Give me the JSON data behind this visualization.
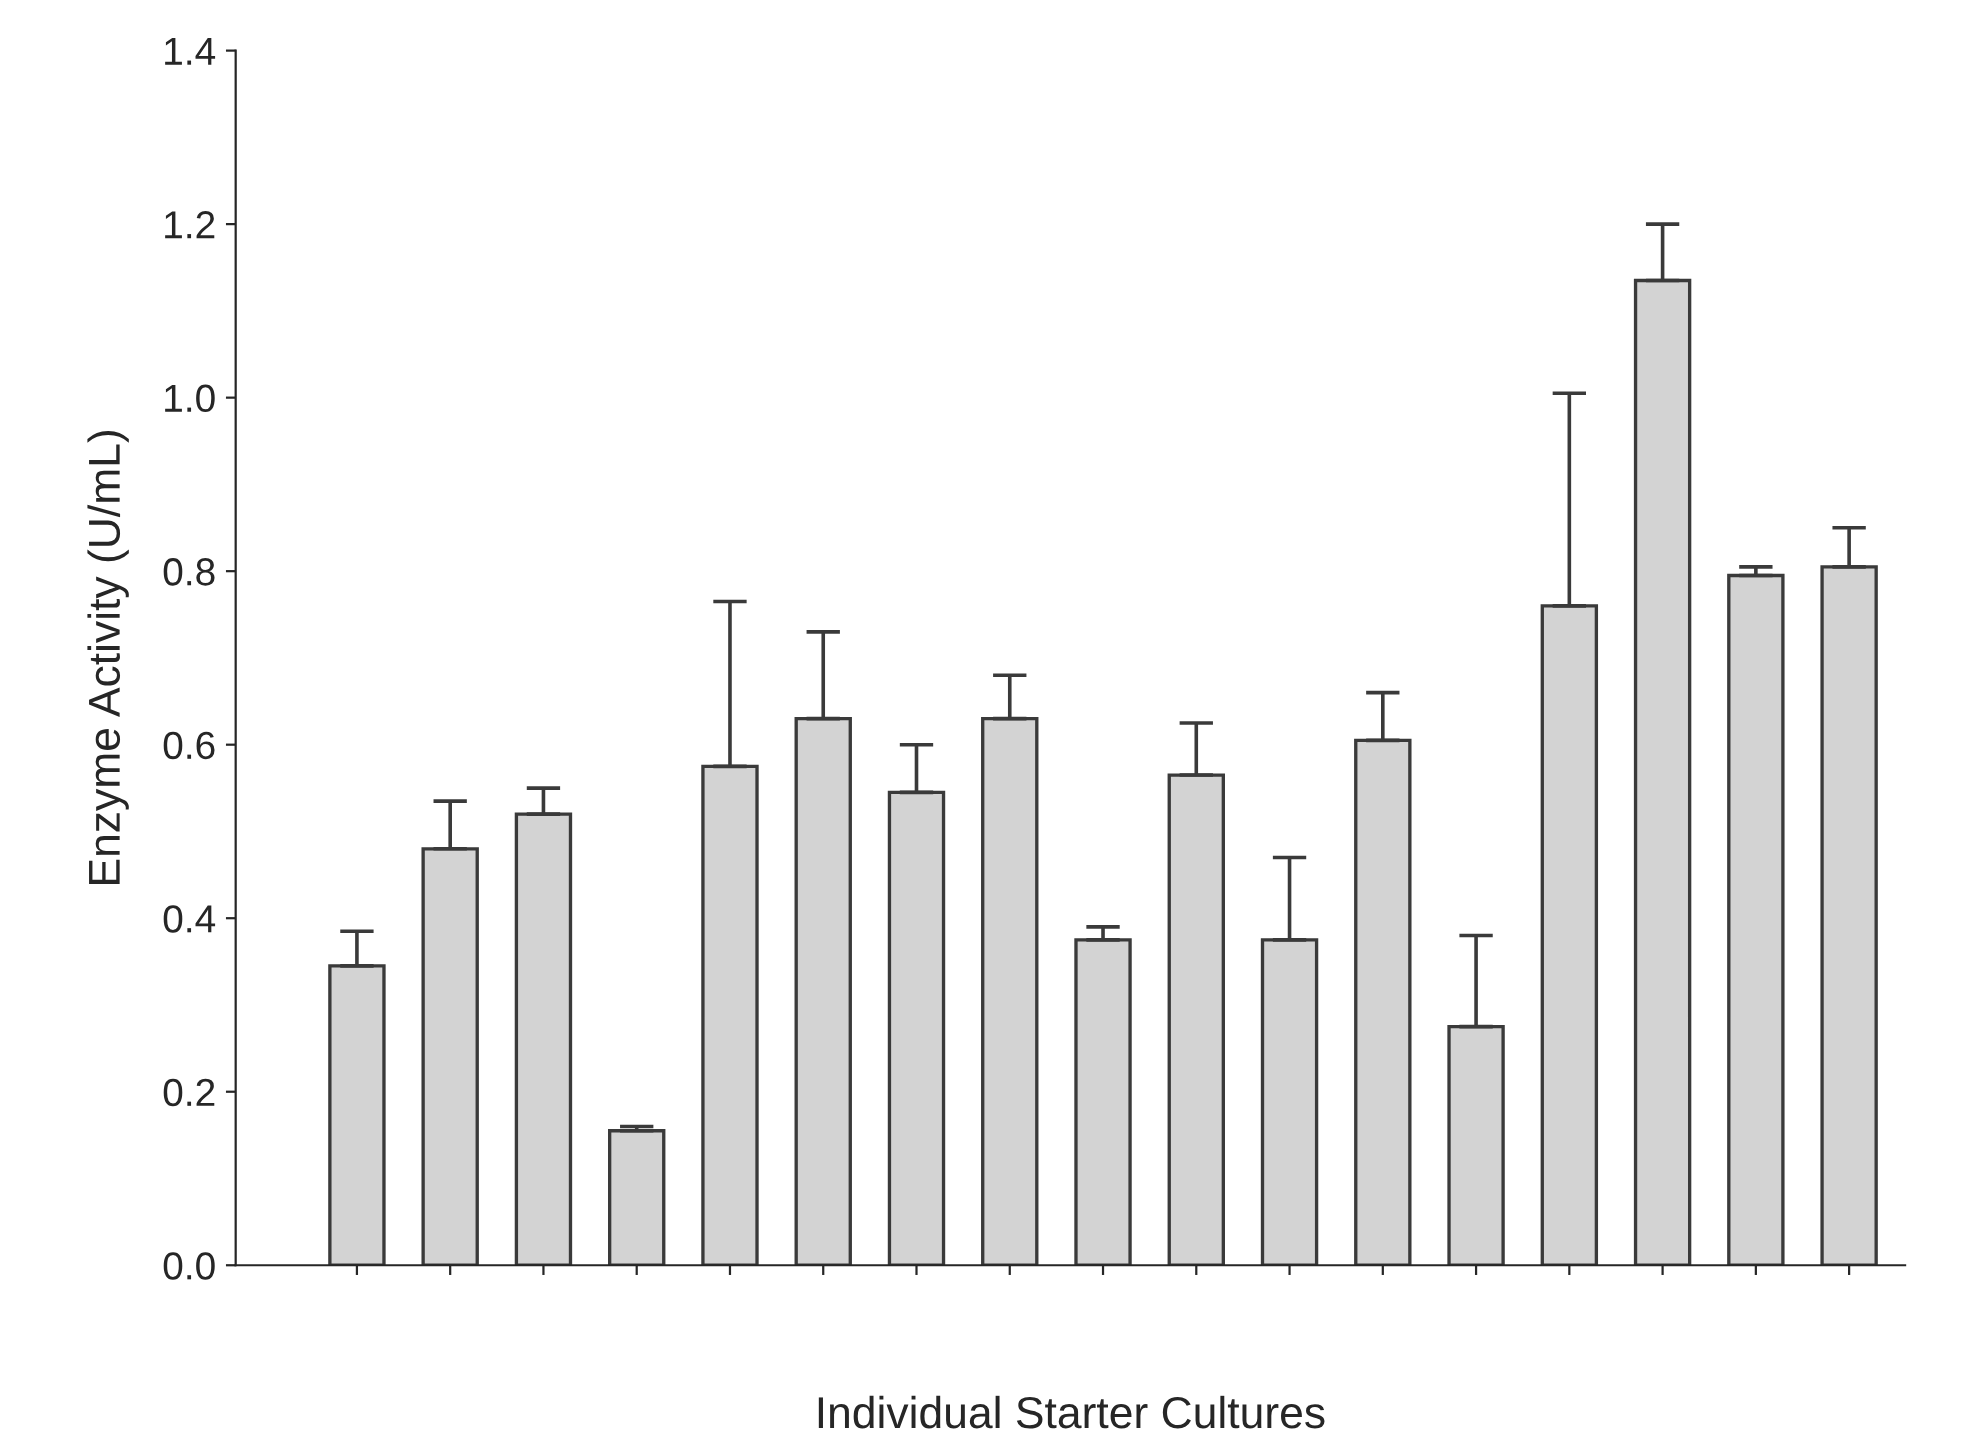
{
  "chart_data": {
    "type": "bar",
    "xlabel": "Individual Starter Cultures",
    "ylabel": "Enzyme Activity (U/mL)",
    "categories": [
      null,
      null,
      null,
      null,
      null,
      null,
      null,
      null,
      null,
      null,
      null,
      null,
      null,
      null,
      null,
      null,
      null
    ],
    "values": [
      0.345,
      0.48,
      0.52,
      0.155,
      0.575,
      0.63,
      0.545,
      0.63,
      0.375,
      0.565,
      0.375,
      0.605,
      0.275,
      0.76,
      1.135,
      0.795,
      0.805
    ],
    "errors": [
      [
        0.345,
        0.385
      ],
      [
        0.48,
        0.535
      ],
      [
        0.52,
        0.55
      ],
      [
        0.155,
        0.16
      ],
      [
        0.575,
        0.765
      ],
      [
        0.63,
        0.73
      ],
      [
        0.545,
        0.6
      ],
      [
        0.63,
        0.68
      ],
      [
        0.375,
        0.39
      ],
      [
        0.565,
        0.625
      ],
      [
        0.375,
        0.47
      ],
      [
        0.605,
        0.66
      ],
      [
        0.275,
        0.38
      ],
      [
        0.76,
        1.005
      ],
      [
        1.135,
        1.2
      ],
      [
        0.795,
        0.805
      ],
      [
        0.805,
        0.85
      ]
    ],
    "color": "#d3d3d3",
    "ylim": [
      0,
      1.4
    ],
    "yticks": [
      {
        "value": 0,
        "label": "0.0"
      },
      {
        "value": 0.2,
        "label": "0.2"
      },
      {
        "value": 0.4,
        "label": "0.4"
      },
      {
        "value": 0.6,
        "label": "0.6"
      },
      {
        "value": 0.8,
        "label": "0.8"
      },
      {
        "value": 1.0,
        "label": "1.0"
      },
      {
        "value": 1.2,
        "label": "1.2"
      },
      {
        "value": 1.4,
        "label": "1.4"
      }
    ],
    "grid": false,
    "legend": false
  }
}
